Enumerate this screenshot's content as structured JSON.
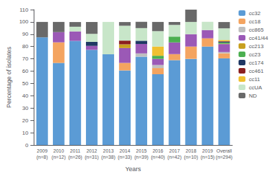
{
  "chart_data": {
    "type": "bar",
    "stacked": true,
    "categories": [
      "2009\n(n=8)",
      "2010\n(n=12)",
      "2011\n(n=26)",
      "2012\n(n=31)",
      "2013\n(n=38)",
      "2014\n(n=33)",
      "2015\n(n=39)",
      "2016\n(n=40)",
      "2017\n(n=42)",
      "2018\n(n=10)",
      "2019\n(n=15)",
      "Overall\n(n=294)"
    ],
    "series": [
      {
        "name": "cc32",
        "color": "#5b9bd5",
        "values": [
          87.5,
          66.7,
          84.6,
          77.4,
          73.7,
          60.6,
          71.8,
          57.5,
          69.0,
          70.0,
          80.0,
          70.4
        ]
      },
      {
        "name": "cc18",
        "color": "#f4a460",
        "values": [
          0.0,
          16.7,
          0.0,
          0.0,
          0.0,
          6.1,
          0.0,
          5.0,
          4.8,
          10.0,
          6.7,
          4.1
        ]
      },
      {
        "name": "cc865",
        "color": "#bfbfbf",
        "values": [
          0.0,
          0.0,
          0.0,
          0.0,
          0.0,
          0.0,
          2.6,
          2.5,
          0.0,
          0.0,
          0.0,
          1.0
        ]
      },
      {
        "name": "cc41/44",
        "color": "#9b59b6",
        "values": [
          0.0,
          8.3,
          7.7,
          3.2,
          0.0,
          12.1,
          7.7,
          5.0,
          9.5,
          10.0,
          6.7,
          6.5
        ]
      },
      {
        "name": "cc213",
        "color": "#c8a020",
        "values": [
          0.0,
          0.0,
          0.0,
          0.0,
          0.0,
          3.0,
          0.0,
          0.0,
          0.0,
          0.0,
          0.0,
          0.3
        ]
      },
      {
        "name": "cc23",
        "color": "#4caf50",
        "values": [
          0.0,
          0.0,
          0.0,
          0.0,
          0.0,
          0.0,
          0.0,
          2.5,
          4.8,
          0.0,
          0.0,
          1.0
        ]
      },
      {
        "name": "cc174",
        "color": "#1f3864",
        "values": [
          0.0,
          0.0,
          0.0,
          3.2,
          0.0,
          0.0,
          2.6,
          0.0,
          0.0,
          0.0,
          0.0,
          0.7
        ]
      },
      {
        "name": "cc461",
        "color": "#8b2020",
        "values": [
          0.0,
          0.0,
          0.0,
          0.0,
          0.0,
          3.0,
          0.0,
          0.0,
          0.0,
          0.0,
          0.0,
          0.3
        ]
      },
      {
        "name": "cc11",
        "color": "#f0c030",
        "values": [
          0.0,
          0.0,
          0.0,
          0.0,
          0.0,
          0.0,
          0.0,
          7.5,
          0.0,
          0.0,
          0.0,
          1.0
        ]
      },
      {
        "name": "ccUA",
        "color": "#c8e6c9",
        "values": [
          0.0,
          0.0,
          3.8,
          6.5,
          26.3,
          12.1,
          10.3,
          12.5,
          9.5,
          10.0,
          6.7,
          9.5
        ]
      },
      {
        "name": "ND",
        "color": "#696969",
        "values": [
          12.5,
          8.3,
          3.8,
          9.7,
          0.0,
          3.0,
          5.1,
          7.5,
          2.4,
          10.0,
          0.0,
          5.1
        ]
      }
    ],
    "xlabel": "Years",
    "ylabel": "Percentage of isolates",
    "ylim": [
      0,
      110
    ],
    "yticks": [
      0,
      10,
      20,
      30,
      40,
      50,
      60,
      70,
      80,
      90,
      100,
      110
    ],
    "grid": false,
    "legend": "right"
  }
}
